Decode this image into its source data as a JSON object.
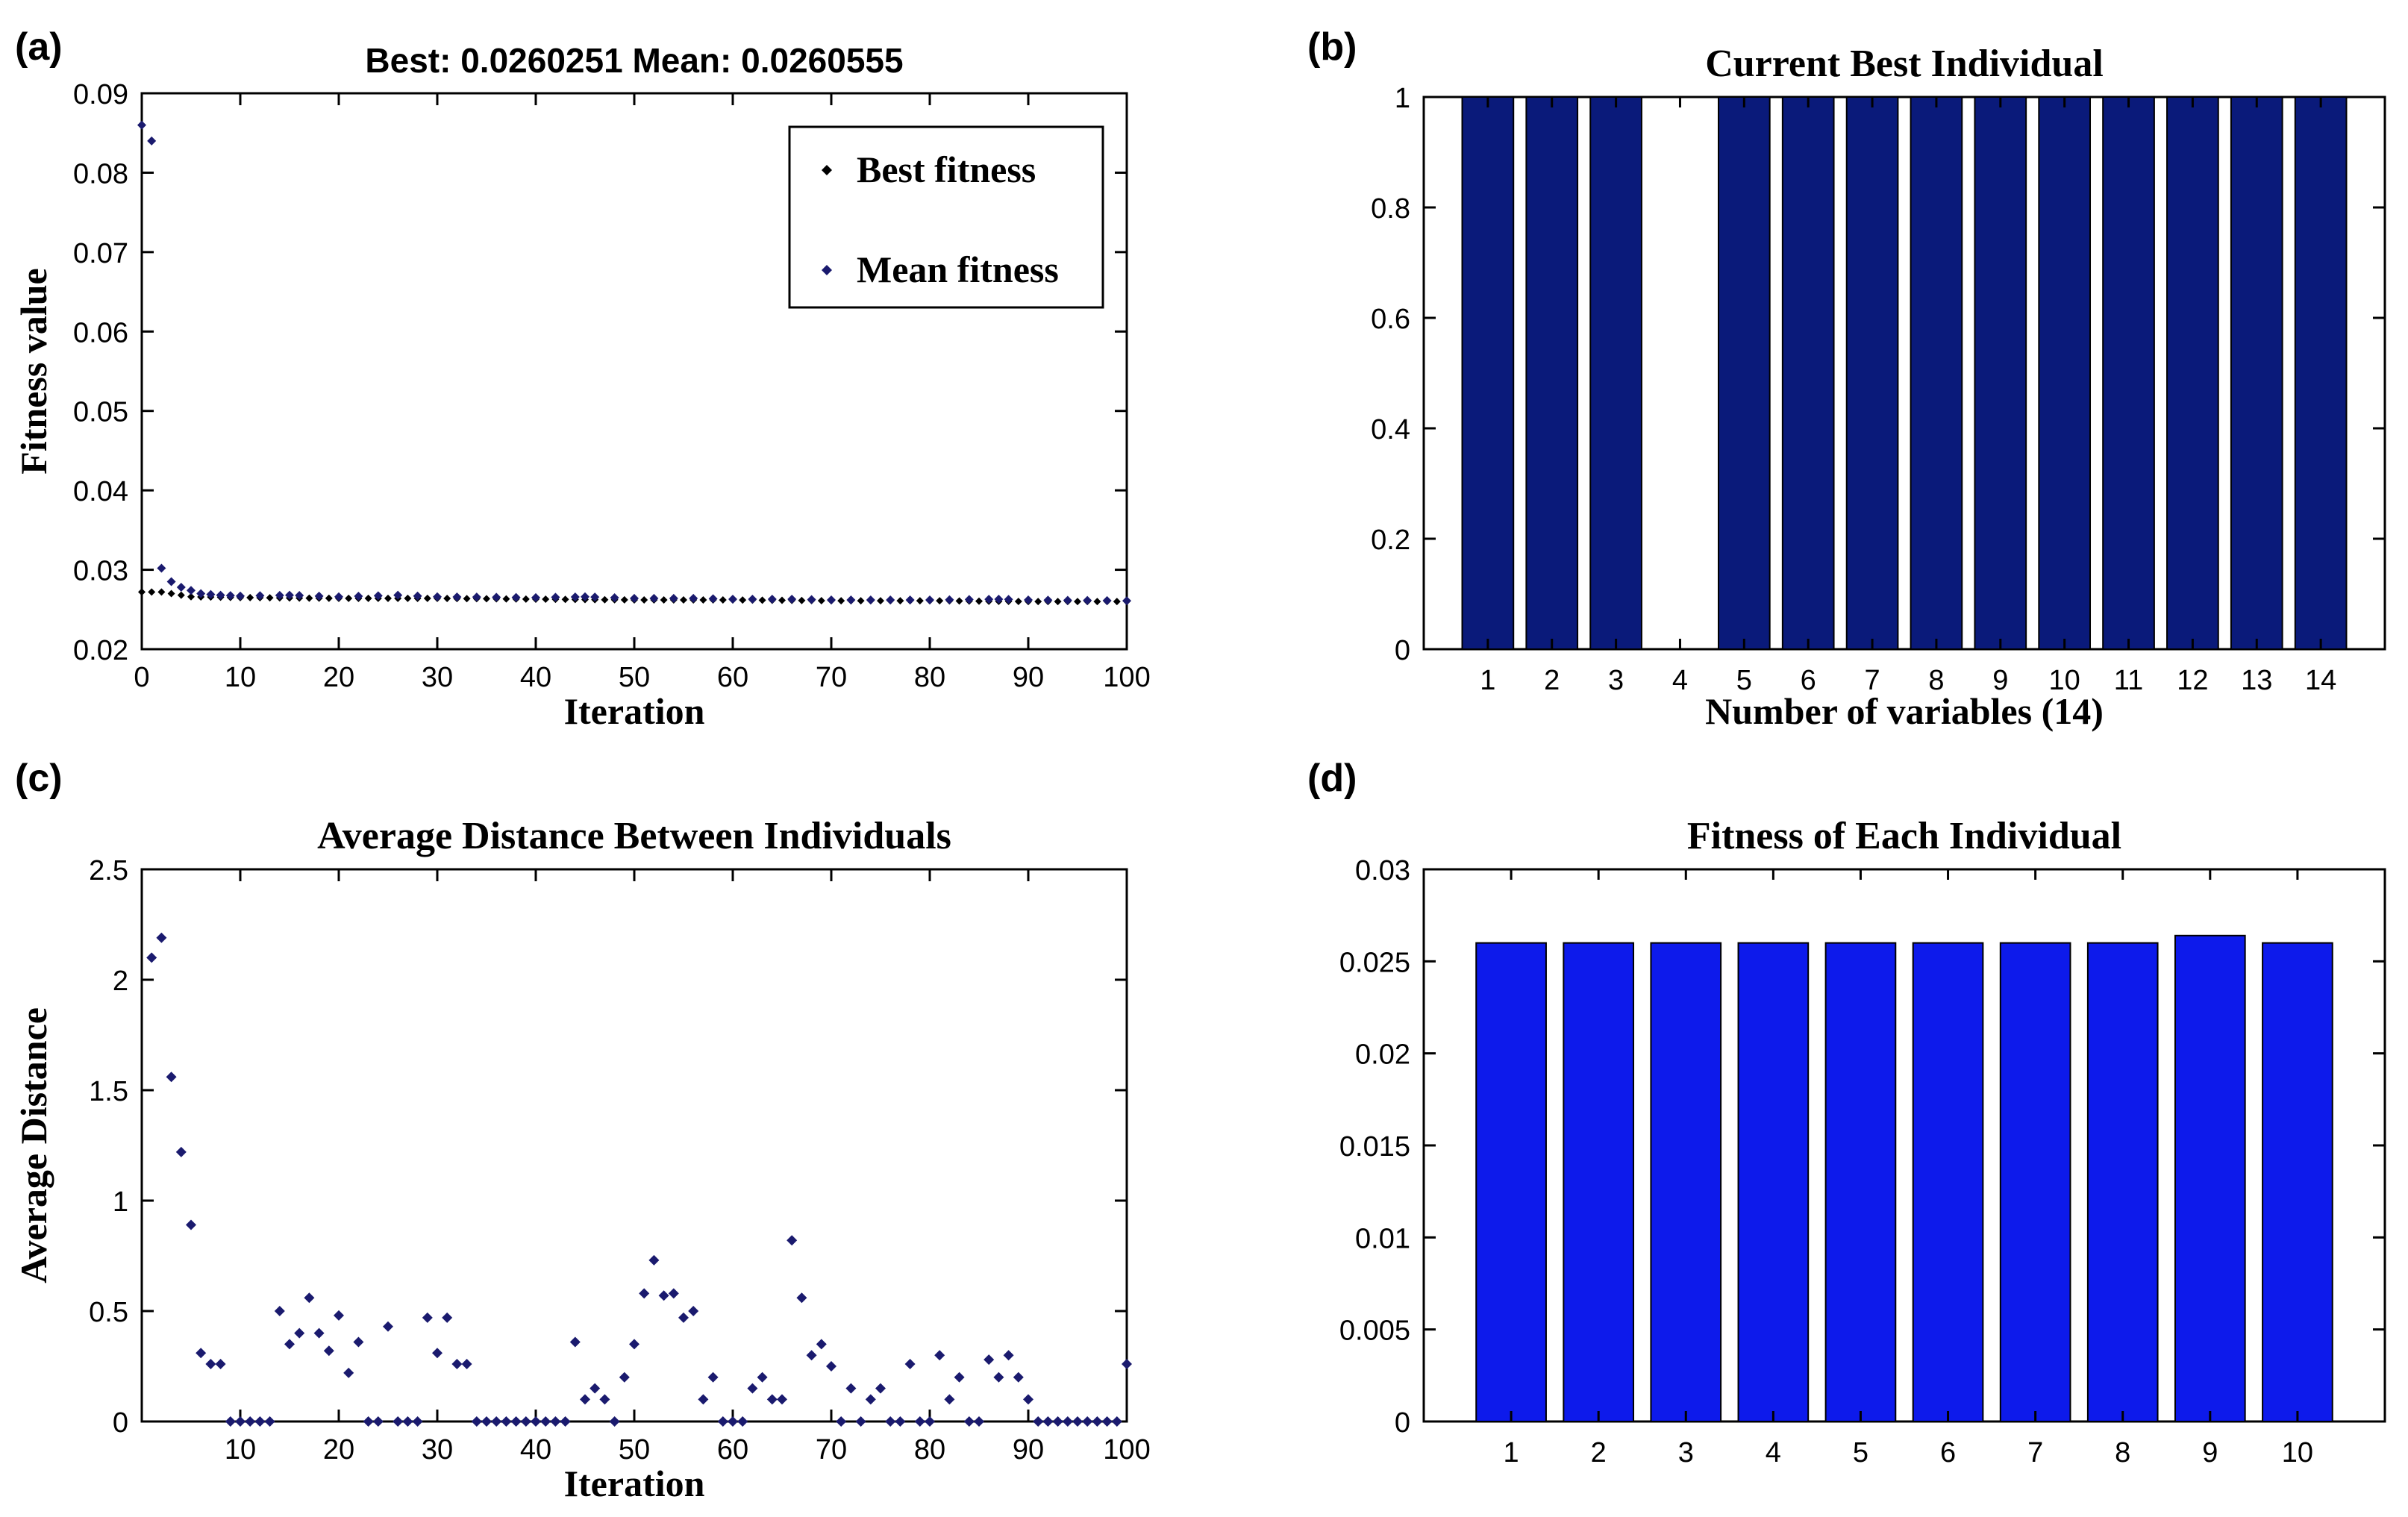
{
  "panels": [
    {
      "id": "a",
      "label": "(a)",
      "chart_data": {
        "type": "scatter",
        "title": "Best: 0.0260251  Mean: 0.0260555",
        "xlabel": "Iteration",
        "ylabel": "Fitness value",
        "xlim": [
          0,
          100
        ],
        "ylim": [
          0.02,
          0.09
        ],
        "xticks": [
          0,
          10,
          20,
          30,
          40,
          50,
          60,
          70,
          80,
          90,
          100
        ],
        "yticks": [
          0.02,
          0.03,
          0.04,
          0.05,
          0.06,
          0.07,
          0.08,
          0.09
        ],
        "ytick_labels": [
          "0.02",
          "0.03",
          "0.04",
          "0.05",
          "0.06",
          "0.07",
          "0.08",
          "0.09"
        ],
        "legend": {
          "position": "top-right",
          "entries": [
            "Best fitness",
            "Mean fitness"
          ]
        },
        "series": [
          {
            "name": "Best fitness",
            "color": "#000000",
            "x_start": 0,
            "x_end": 100,
            "points": [
              [
                0,
                0.0272
              ],
              [
                1,
                0.0272
              ],
              [
                2,
                0.0272
              ],
              [
                3,
                0.027
              ],
              [
                4,
                0.0268
              ],
              [
                5,
                0.0266
              ],
              [
                10,
                0.0265
              ],
              [
                20,
                0.0264
              ],
              [
                30,
                0.0264
              ],
              [
                40,
                0.0263
              ],
              [
                50,
                0.0262
              ],
              [
                60,
                0.0262
              ],
              [
                70,
                0.0261
              ],
              [
                80,
                0.0261
              ],
              [
                90,
                0.026
              ],
              [
                100,
                0.026
              ]
            ]
          },
          {
            "name": "Mean fitness",
            "color": "#1a1a6e",
            "points": [
              [
                0,
                0.086
              ],
              [
                1,
                0.084
              ],
              [
                2,
                0.0302
              ],
              [
                3,
                0.0285
              ],
              [
                4,
                0.0278
              ],
              [
                5,
                0.0274
              ],
              [
                6,
                0.027
              ],
              [
                8,
                0.0268
              ],
              [
                10,
                0.0267
              ],
              [
                15,
                0.0268
              ],
              [
                20,
                0.0266
              ],
              [
                26,
                0.0268
              ],
              [
                30,
                0.0266
              ],
              [
                40,
                0.0265
              ],
              [
                45,
                0.0266
              ],
              [
                50,
                0.0264
              ],
              [
                56,
                0.0264
              ],
              [
                60,
                0.0263
              ],
              [
                66,
                0.0263
              ],
              [
                70,
                0.0262
              ],
              [
                80,
                0.0262
              ],
              [
                87,
                0.0263
              ],
              [
                90,
                0.0262
              ],
              [
                100,
                0.0261
              ]
            ]
          }
        ]
      }
    },
    {
      "id": "b",
      "label": "(b)",
      "chart_data": {
        "type": "bar",
        "title": "Current Best Individual",
        "xlabel": "Number of variables (14)",
        "ylabel": "",
        "color": "#0a1a7a",
        "categories": [
          "1",
          "2",
          "3",
          "4",
          "5",
          "6",
          "7",
          "8",
          "9",
          "10",
          "11",
          "12",
          "13",
          "14"
        ],
        "values": [
          1,
          1,
          1,
          0,
          1,
          1,
          1,
          1,
          1,
          1,
          1,
          1,
          1,
          1
        ],
        "ylim": [
          0,
          1
        ],
        "yticks": [
          0,
          0.2,
          0.4,
          0.6,
          0.8,
          1
        ],
        "ytick_labels": [
          "0",
          "0.2",
          "0.4",
          "0.6",
          "0.8",
          "1"
        ]
      }
    },
    {
      "id": "c",
      "label": "(c)",
      "chart_data": {
        "type": "scatter",
        "title": "Average Distance Between Individuals",
        "xlabel": "Iteration",
        "ylabel": "Average Distance",
        "color": "#1a1a6e",
        "xlim": [
          0,
          100
        ],
        "ylim": [
          0,
          2.5
        ],
        "xticks": [
          10,
          20,
          30,
          40,
          50,
          60,
          70,
          80,
          90,
          100
        ],
        "yticks": [
          0,
          0.5,
          1,
          1.5,
          2,
          2.5
        ],
        "ytick_labels": [
          "0",
          "0.5",
          "1",
          "1.5",
          "2",
          "2.5"
        ],
        "x": [
          1,
          2,
          3,
          4,
          5,
          6,
          7,
          8,
          9,
          10,
          11,
          12,
          13,
          14,
          15,
          16,
          17,
          18,
          19,
          20,
          21,
          22,
          23,
          24,
          25,
          26,
          27,
          28,
          29,
          30,
          31,
          32,
          33,
          34,
          35,
          36,
          37,
          38,
          39,
          40,
          41,
          42,
          43,
          44,
          45,
          46,
          47,
          48,
          49,
          50,
          51,
          52,
          53,
          54,
          55,
          56,
          57,
          58,
          59,
          60,
          61,
          62,
          63,
          64,
          65,
          66,
          67,
          68,
          69,
          70,
          71,
          72,
          73,
          74,
          75,
          76,
          77,
          78,
          79,
          80,
          81,
          82,
          83,
          84,
          85,
          86,
          87,
          88,
          89,
          90,
          91,
          92,
          93,
          94,
          95,
          96,
          97,
          98,
          99,
          100
        ],
        "y": [
          2.1,
          2.19,
          1.56,
          1.22,
          0.89,
          0.31,
          0.26,
          0.26,
          0,
          0,
          0,
          0,
          0,
          0.5,
          0.35,
          0.4,
          0.56,
          0.4,
          0.32,
          0.48,
          0.22,
          0.36,
          0,
          0,
          0.43,
          0,
          0,
          0,
          0.47,
          0.31,
          0.47,
          0.26,
          0.26,
          0,
          0,
          0,
          0,
          0,
          0,
          0,
          0,
          0,
          0,
          0.36,
          0.1,
          0.15,
          0.1,
          0,
          0.2,
          0.35,
          0.58,
          0.73,
          0.57,
          0.58,
          0.47,
          0.5,
          0.1,
          0.2,
          0,
          0,
          0,
          0.15,
          0.2,
          0.1,
          0.1,
          0.82,
          0.56,
          0.3,
          0.35,
          0.25,
          0,
          0.15,
          0,
          0.1,
          0.15,
          0,
          0,
          0.26,
          0,
          0,
          0.3,
          0.1,
          0.2,
          0,
          0,
          0.28,
          0.2,
          0.3,
          0.2,
          0.1,
          0,
          0,
          0,
          0,
          0,
          0,
          0,
          0,
          0,
          0.26
        ]
      }
    },
    {
      "id": "d",
      "label": "(d)",
      "chart_data": {
        "type": "bar",
        "title": "Fitness of Each Individual",
        "xlabel": "",
        "ylabel": "",
        "color": "#0d1aeb",
        "categories": [
          "1",
          "2",
          "3",
          "4",
          "5",
          "6",
          "7",
          "8",
          "9",
          "10"
        ],
        "values": [
          0.026,
          0.026,
          0.026,
          0.026,
          0.026,
          0.026,
          0.026,
          0.026,
          0.0264,
          0.026
        ],
        "ylim": [
          0,
          0.03
        ],
        "yticks": [
          0,
          0.005,
          0.01,
          0.015,
          0.02,
          0.025,
          0.03
        ],
        "ytick_labels": [
          "0",
          "0.005",
          "0.01",
          "0.015",
          "0.02",
          "0.025",
          "0.03"
        ]
      }
    }
  ]
}
